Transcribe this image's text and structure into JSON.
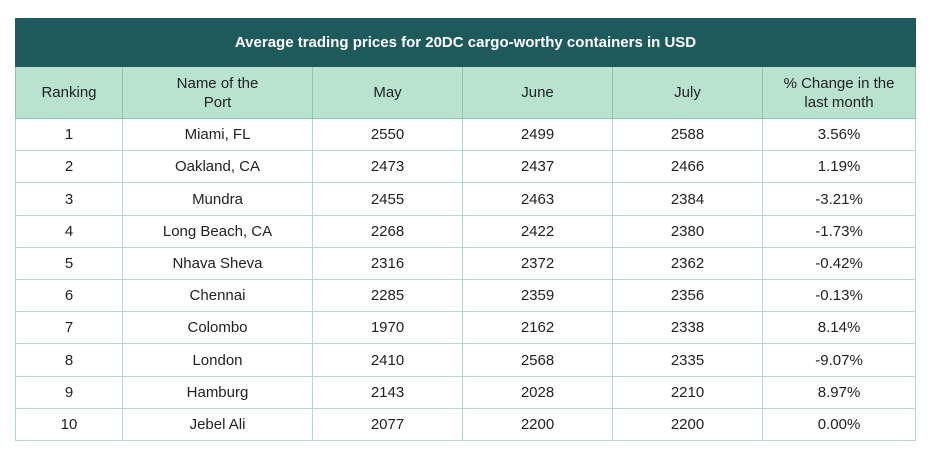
{
  "chart_data": {
    "type": "table",
    "title": "Average trading prices for 20DC cargo-worthy containers in USD",
    "columns": [
      "Ranking",
      "Name of the Port",
      "May",
      "June",
      "July",
      "% Change in the last month"
    ],
    "rows": [
      [
        "1",
        "Miami, FL",
        "2550",
        "2499",
        "2588",
        "3.56%"
      ],
      [
        "2",
        "Oakland, CA",
        "2473",
        "2437",
        "2466",
        "1.19%"
      ],
      [
        "3",
        "Mundra",
        "2455",
        "2463",
        "2384",
        "-3.21%"
      ],
      [
        "4",
        "Long Beach, CA",
        "2268",
        "2422",
        "2380",
        "-1.73%"
      ],
      [
        "5",
        "Nhava Sheva",
        "2316",
        "2372",
        "2362",
        "-0.42%"
      ],
      [
        "6",
        "Chennai",
        "2285",
        "2359",
        "2356",
        "-0.13%"
      ],
      [
        "7",
        "Colombo",
        "1970",
        "2162",
        "2338",
        "8.14%"
      ],
      [
        "8",
        "London",
        "2410",
        "2568",
        "2335",
        "-9.07%"
      ],
      [
        "9",
        "Hamburg",
        "2143",
        "2028",
        "2210",
        "8.97%"
      ],
      [
        "10",
        "Jebel Ali",
        "2077",
        "2200",
        "2200",
        "0.00%"
      ]
    ]
  },
  "colors": {
    "title_bg": "#1e5a5c",
    "header_bg": "#b9e3cf",
    "border": "#b6d9c8"
  }
}
